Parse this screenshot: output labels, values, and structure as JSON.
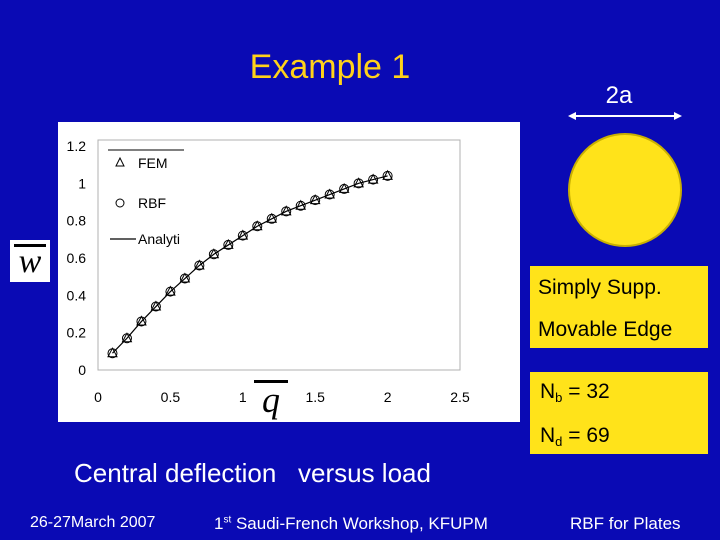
{
  "slide": {
    "title": "Example 1",
    "dimension_label": "2a",
    "support_line1": "Simply Supp.",
    "support_line2": "Movable Edge",
    "nb_letter": "N",
    "nb_sub": "b",
    "nb_value": " = 32",
    "nd_letter": "N",
    "nd_sub": "d",
    "nd_value": " = 69",
    "caption": "Central deflection   versus load",
    "y_axis_symbol": "w",
    "x_axis_symbol": "q",
    "colors": {
      "background": "#0a0ab4",
      "title": "#ffd21a",
      "accent_yellow": "#ffe31a"
    }
  },
  "footer": {
    "date": "26-27March 2007",
    "workshop_ordinal": "1",
    "workshop_sup": "st",
    "workshop_rest": " Saudi-French Workshop, KFUPM",
    "topic": "RBF for Plates"
  },
  "chart_data": {
    "type": "line",
    "xlim": [
      0,
      2.5
    ],
    "ylim": [
      0,
      1.2
    ],
    "x_ticks": [
      "0",
      "0.5",
      "1",
      "1.5",
      "2",
      "2.5"
    ],
    "y_ticks": [
      "0",
      "0.2",
      "0.4",
      "0.6",
      "0.8",
      "1",
      "1.2"
    ],
    "x_tick_values": [
      0,
      0.5,
      1,
      1.5,
      2,
      2.5
    ],
    "y_tick_values": [
      0,
      0.2,
      0.4,
      0.6,
      0.8,
      1,
      1.2
    ],
    "grid": false,
    "legend_position": "top-left",
    "series": [
      {
        "name": "FEM",
        "marker": "triangle",
        "x": [
          0.1,
          0.2,
          0.3,
          0.4,
          0.5,
          0.6,
          0.7,
          0.8,
          0.9,
          1.0,
          1.1,
          1.2,
          1.3,
          1.4,
          1.5,
          1.6,
          1.7,
          1.8,
          1.9,
          2.0
        ],
        "y": [
          0.09,
          0.17,
          0.26,
          0.34,
          0.42,
          0.49,
          0.56,
          0.62,
          0.67,
          0.72,
          0.77,
          0.81,
          0.85,
          0.88,
          0.91,
          0.94,
          0.97,
          1.0,
          1.02,
          1.04
        ]
      },
      {
        "name": "RBF",
        "marker": "circle",
        "x": [
          0.1,
          0.2,
          0.3,
          0.4,
          0.5,
          0.6,
          0.7,
          0.8,
          0.9,
          1.0,
          1.1,
          1.2,
          1.3,
          1.4,
          1.5,
          1.6,
          1.7,
          1.8,
          1.9,
          2.0
        ],
        "y": [
          0.09,
          0.17,
          0.26,
          0.34,
          0.42,
          0.49,
          0.56,
          0.62,
          0.67,
          0.72,
          0.77,
          0.81,
          0.85,
          0.88,
          0.91,
          0.94,
          0.97,
          1.0,
          1.02,
          1.04
        ]
      },
      {
        "name": "Analyti",
        "marker": "none",
        "x": [
          0.1,
          0.2,
          0.3,
          0.4,
          0.5,
          0.6,
          0.7,
          0.8,
          0.9,
          1.0,
          1.1,
          1.2,
          1.3,
          1.4,
          1.5,
          1.6,
          1.7,
          1.8,
          1.9,
          2.0
        ],
        "y": [
          0.09,
          0.17,
          0.26,
          0.34,
          0.42,
          0.49,
          0.56,
          0.62,
          0.67,
          0.72,
          0.77,
          0.81,
          0.85,
          0.88,
          0.91,
          0.94,
          0.97,
          1.0,
          1.02,
          1.04
        ]
      }
    ]
  }
}
